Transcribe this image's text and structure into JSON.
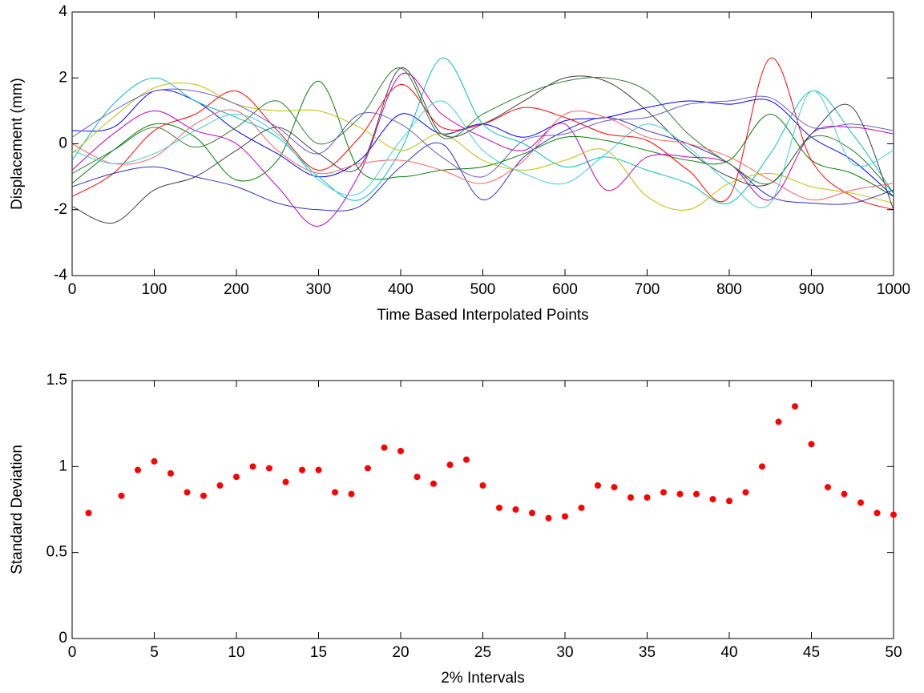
{
  "chart_data": [
    {
      "type": "line",
      "xlabel": "Time Based Interpolated Points",
      "ylabel": "Displacement (mm)",
      "xlim": [
        0,
        1000
      ],
      "xticks": [
        0,
        100,
        200,
        300,
        400,
        500,
        600,
        700,
        800,
        900,
        1000
      ],
      "ylim": [
        -4,
        4
      ],
      "yticks": [
        -4,
        -2,
        0,
        2,
        4
      ],
      "x": [
        0,
        50,
        100,
        150,
        200,
        250,
        300,
        350,
        400,
        450,
        500,
        550,
        600,
        650,
        700,
        750,
        800,
        850,
        900,
        950,
        1000
      ],
      "series": [
        {
          "color": "#0000ff",
          "values": [
            0.4,
            0.5,
            1.6,
            1.3,
            0.4,
            -0.3,
            -1.0,
            -0.5,
            0.9,
            0.3,
            0.6,
            0.2,
            0.7,
            0.8,
            1.1,
            1.3,
            1.2,
            1.3,
            0.2,
            -0.5,
            -1.6
          ]
        },
        {
          "color": "#008000",
          "values": [
            -1.2,
            -0.2,
            0.6,
            0.2,
            -1.1,
            -0.5,
            1.9,
            -0.8,
            -1.0,
            -0.8,
            -0.7,
            -0.3,
            0.2,
            0.1,
            -0.2,
            -0.5,
            -0.5,
            0.9,
            -0.5,
            -0.9,
            -1.6
          ]
        },
        {
          "color": "#ff0000",
          "values": [
            -1.6,
            -0.9,
            0.4,
            0.9,
            1.6,
            0.4,
            -0.8,
            0.2,
            1.8,
            0.5,
            0.6,
            1.1,
            0.8,
            0.3,
            0.1,
            -0.8,
            -1.6,
            2.6,
            -0.5,
            -1.6,
            -2.0
          ]
        },
        {
          "color": "#00bfbf",
          "values": [
            -0.5,
            1.2,
            2.0,
            1.3,
            0.8,
            0.2,
            -1.0,
            -1.7,
            -0.2,
            2.6,
            0.6,
            0.0,
            -0.7,
            -0.4,
            -0.8,
            -1.2,
            -1.8,
            -0.3,
            1.6,
            0.3,
            -1.5
          ]
        },
        {
          "color": "#bf00bf",
          "values": [
            -0.8,
            0.3,
            1.0,
            0.4,
            0.0,
            -1.3,
            -2.5,
            -0.9,
            2.1,
            0.9,
            0.2,
            -0.2,
            0.6,
            -1.4,
            -0.4,
            -0.4,
            -0.6,
            -1.7,
            0.3,
            0.5,
            0.3
          ]
        },
        {
          "color": "#bfbf00",
          "values": [
            -0.3,
            0.8,
            1.7,
            1.8,
            1.2,
            1.0,
            1.0,
            0.5,
            -0.2,
            0.3,
            -0.5,
            -0.8,
            -0.5,
            -0.2,
            -1.6,
            -2.0,
            -1.2,
            -0.9,
            -1.3,
            -1.5,
            -1.8
          ]
        },
        {
          "color": "#404040",
          "values": [
            -1.9,
            -2.4,
            -1.4,
            -1.0,
            -0.2,
            0.5,
            -0.3,
            -0.7,
            2.3,
            0.3,
            0.6,
            1.3,
            2.0,
            1.9,
            1.0,
            -0.2,
            -1.0,
            -1.2,
            0.3,
            1.1,
            -2.0
          ]
        },
        {
          "color": "#3030c0",
          "values": [
            -1.3,
            -0.9,
            -0.7,
            -1.0,
            -1.3,
            -1.8,
            -2.0,
            -1.9,
            -0.7,
            0.0,
            -1.7,
            -0.4,
            0.4,
            0.8,
            0.4,
            0.0,
            -0.6,
            -1.6,
            -1.8,
            -1.8,
            -1.4
          ]
        },
        {
          "color": "#2e7d32",
          "values": [
            -0.9,
            -0.2,
            0.5,
            -0.1,
            0.5,
            1.3,
            0.0,
            0.8,
            2.3,
            0.2,
            0.9,
            1.5,
            1.9,
            2.0,
            1.6,
            0.3,
            -0.6,
            -1.2,
            0.2,
            -0.2,
            -1.5
          ]
        },
        {
          "color": "#ff6060",
          "values": [
            0.0,
            -0.6,
            -0.4,
            0.6,
            1.0,
            -0.2,
            -0.9,
            -0.6,
            -0.5,
            -0.8,
            -1.2,
            -0.5,
            0.9,
            0.8,
            0.2,
            0.0,
            -0.4,
            -1.1,
            -1.7,
            -1.4,
            -1.2
          ]
        },
        {
          "color": "#40d0d0",
          "values": [
            -0.2,
            -0.6,
            -0.3,
            0.4,
            0.9,
            0.3,
            -1.1,
            -1.5,
            0.1,
            1.3,
            -0.2,
            -0.9,
            -1.2,
            -0.3,
            0.6,
            -0.1,
            -1.2,
            -1.8,
            1.6,
            -0.6,
            -0.2
          ]
        },
        {
          "color": "#6a5acd",
          "values": [
            0.2,
            1.0,
            1.6,
            1.6,
            1.2,
            0.5,
            -0.3,
            0.9,
            0.6,
            -0.4,
            -1.0,
            0.1,
            0.3,
            0.7,
            0.8,
            1.2,
            1.3,
            1.4,
            0.5,
            0.6,
            0.4
          ]
        }
      ]
    },
    {
      "type": "scatter",
      "xlabel": "2% Intervals",
      "ylabel": "Standard Deviation",
      "xlim": [
        0,
        50
      ],
      "xticks": [
        0,
        5,
        10,
        15,
        20,
        25,
        30,
        35,
        40,
        45,
        50
      ],
      "ylim": [
        0,
        1.5
      ],
      "yticks": [
        0,
        0.5,
        1,
        1.5
      ],
      "color": "#ff0000",
      "x": [
        1,
        3,
        4,
        5,
        6,
        7,
        8,
        9,
        10,
        11,
        12,
        13,
        14,
        15,
        16,
        17,
        18,
        19,
        20,
        21,
        22,
        23,
        24,
        25,
        26,
        27,
        28,
        29,
        30,
        31,
        32,
        33,
        34,
        35,
        36,
        37,
        38,
        39,
        40,
        41,
        42,
        43,
        44,
        45,
        46,
        47,
        48,
        49,
        50
      ],
      "values": [
        0.73,
        0.83,
        0.98,
        1.03,
        0.96,
        0.85,
        0.83,
        0.89,
        0.94,
        1.0,
        0.99,
        0.91,
        0.98,
        0.98,
        0.85,
        0.84,
        0.99,
        1.11,
        1.09,
        0.94,
        0.9,
        1.01,
        1.04,
        0.89,
        0.76,
        0.75,
        0.73,
        0.7,
        0.71,
        0.76,
        0.89,
        0.88,
        0.82,
        0.82,
        0.85,
        0.84,
        0.84,
        0.81,
        0.8,
        0.85,
        1.0,
        1.26,
        1.35,
        1.13,
        0.88,
        0.84,
        0.79,
        0.73,
        0.72
      ]
    }
  ]
}
